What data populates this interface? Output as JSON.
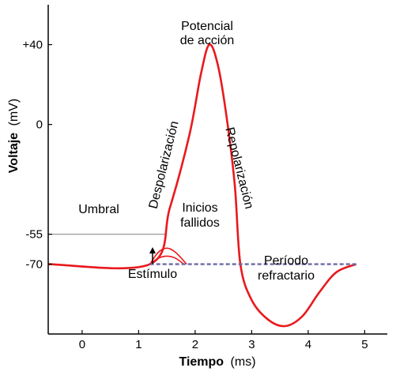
{
  "chart_data": {
    "type": "line",
    "xlabel_bold": "Tiempo",
    "xlabel_unit": "(ms)",
    "ylabel_bold": "Voltaje",
    "ylabel_unit": "(mV)",
    "xlim": [
      -0.6,
      5.4
    ],
    "ylim": [
      -105,
      60
    ],
    "x_ticks": [
      0,
      1,
      2,
      3,
      4,
      5
    ],
    "y_ticks": [
      {
        "value": 40,
        "label": "+40"
      },
      {
        "value": 0,
        "label": "0"
      },
      {
        "value": -55,
        "label": "-55"
      },
      {
        "value": -70,
        "label": "-70"
      }
    ],
    "series": [
      {
        "points": [
          [
            -0.6,
            -70
          ],
          [
            1.2,
            -70
          ],
          [
            1.55,
            -42
          ],
          [
            1.9,
            -5
          ],
          [
            2.1,
            25
          ],
          [
            2.25,
            40
          ],
          [
            2.4,
            30
          ],
          [
            2.55,
            5
          ],
          [
            2.7,
            -30
          ],
          [
            2.8,
            -70
          ],
          [
            3.0,
            -88
          ],
          [
            3.3,
            -98
          ],
          [
            3.6,
            -101
          ],
          [
            3.9,
            -96
          ],
          [
            4.2,
            -84
          ],
          [
            4.5,
            -74
          ],
          [
            4.85,
            -70
          ]
        ],
        "color": "#e8191d"
      },
      {
        "points": [
          [
            1.2,
            -70
          ],
          [
            1.35,
            -64
          ],
          [
            1.5,
            -62
          ],
          [
            1.65,
            -64
          ],
          [
            1.85,
            -70
          ]
        ],
        "color": "#e8191d"
      },
      {
        "points": [
          [
            1.2,
            -70
          ],
          [
            1.35,
            -67
          ],
          [
            1.5,
            -66
          ],
          [
            1.65,
            -67
          ],
          [
            1.8,
            -70
          ]
        ],
        "color": "#e8191d"
      }
    ],
    "resting_dashed": {
      "y": -70,
      "x_start": 1.2,
      "x_end": 4.85,
      "color": "#6a6aa8"
    },
    "threshold": {
      "y": -55,
      "x_start": -0.6,
      "x_end": 1.5,
      "color": "#999999"
    },
    "annotations": {
      "peak_line1": "Potencial",
      "peak_line2": "de acción",
      "depolarization": "Despolarización",
      "repolarization": "Repolarización",
      "threshold": "Umbral",
      "failed_line1": "Inicios",
      "failed_line2": "fallidos",
      "refractory_line1": "Período",
      "refractory_line2": "refractario",
      "stimulus": "Estímulo"
    }
  }
}
